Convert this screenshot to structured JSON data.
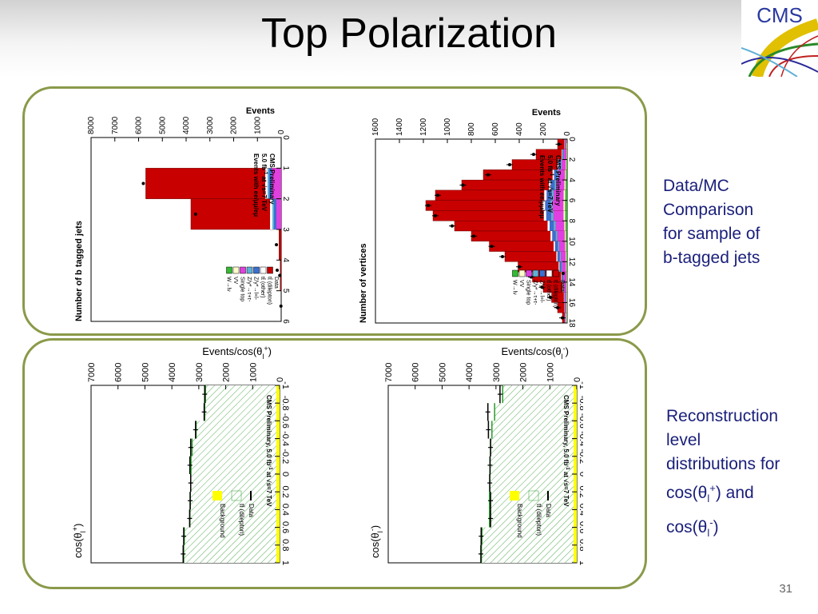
{
  "slide": {
    "title": "Top Polarization",
    "page_number": "31",
    "logo_text": "CMS",
    "side_text_1": [
      "Data/MC",
      "Comparison",
      "for sample of",
      "b-tagged jets"
    ],
    "side_text_2": [
      "Reconstruction",
      "level",
      "distributions for",
      "cos(θ",
      "l",
      "+",
      ") and",
      "cos(θ",
      "l",
      "-",
      ")"
    ]
  },
  "colors": {
    "panel_border": "#8a9a4a",
    "text_blue": "#1a1f7a",
    "ttbar_dilepton": "#c80000",
    "ttbar_other": "#ffffff",
    "z_ll": "#3b6fd0",
    "z_tautau": "#5fb0d8",
    "single_top": "#e040e0",
    "vv": "#ffffcc",
    "w_lnu": "#33bb33",
    "background_yellow": "#ffff00",
    "hatch_green": "#2a9a2a"
  },
  "chart_data": [
    {
      "type": "bar",
      "title": "",
      "ylabel": "Events",
      "xlabel": "Number of vertices",
      "xlim": [
        0,
        18
      ],
      "ylim": [
        0,
        1600
      ],
      "x_ticks": [
        "0",
        "2",
        "4",
        "6",
        "8",
        "10",
        "12",
        "14",
        "16",
        "18"
      ],
      "y_ticks": [
        "0",
        "200",
        "400",
        "600",
        "800",
        "1000",
        "1200",
        "1400",
        "1600"
      ],
      "annotation": [
        "CMS Preliminary",
        "5.0 fb",
        "-1",
        " at  √s=7 TeV",
        "Events with ee/μμ/eμ"
      ],
      "legend": [
        "Data",
        "tt̄ (dilepton)",
        "tt̄ (other)",
        "Z/γ*→l",
        "+",
        "l",
        "-",
        "Z/γ*→τ",
        "+",
        "τ",
        "-",
        "Single top",
        "VV",
        "W→lν"
      ],
      "categories": [
        0,
        1,
        2,
        3,
        4,
        5,
        6,
        7,
        8,
        9,
        10,
        11,
        12,
        13,
        14,
        15,
        16,
        17
      ],
      "series": [
        {
          "name": "tt̄ (dilepton)",
          "values": [
            80,
            260,
            460,
            700,
            880,
            1100,
            1180,
            1120,
            940,
            800,
            650,
            520,
            410,
            290,
            200,
            130,
            80,
            40
          ]
        },
        {
          "name": "Data",
          "values": [
            70,
            280,
            480,
            660,
            870,
            1080,
            1160,
            1100,
            960,
            780,
            630,
            540,
            400,
            300,
            210,
            140,
            80,
            40
          ]
        }
      ]
    },
    {
      "type": "bar",
      "title": "",
      "ylabel": "Events",
      "xlabel": "Number of b tagged jets",
      "xlim": [
        0,
        6
      ],
      "ylim": [
        0,
        8000
      ],
      "x_ticks": [
        "0",
        "1",
        "2",
        "3",
        "4",
        "5",
        "6"
      ],
      "y_ticks": [
        "0",
        "1000",
        "2000",
        "3000",
        "4000",
        "5000",
        "6000",
        "7000",
        "8000"
      ],
      "annotation": [
        "CMS Preliminary",
        "5.0 fb",
        "-1",
        " at  √s=7 TeV",
        "Events with ee/μμ/eμ"
      ],
      "legend": [
        "Data",
        "tt̄ (dilepton)",
        "tt̄ (other)",
        "Z/γ*→l",
        "+",
        "l",
        "-",
        "Z/γ*→τ",
        "+",
        "τ",
        "-",
        "Single top",
        "VV",
        "W→lν"
      ],
      "categories": [
        1,
        2,
        3,
        4,
        5
      ],
      "series": [
        {
          "name": "tt̄ (dilepton)",
          "values": [
            5700,
            3800,
            90,
            40,
            0
          ]
        },
        {
          "name": "Data",
          "values": [
            5800,
            3600,
            200,
            60,
            10
          ]
        }
      ]
    },
    {
      "type": "bar",
      "title": "",
      "ylabel": "Events/cos(θ",
      "ylabel_sub": "l",
      "ylabel_sup": "-",
      "ylabel_end": ")",
      "xlabel": "cos(θ",
      "xlabel_sub": "l",
      "xlabel_sup": "-",
      "xlabel_end": ")",
      "xlim": [
        -1,
        1
      ],
      "ylim": [
        0,
        7000
      ],
      "x_ticks": [
        "-1",
        "-0.8",
        "-0.6",
        "-0.4",
        "-0.2",
        "0",
        "0.2",
        "0.4",
        "0.6",
        "0.8",
        "1"
      ],
      "y_ticks": [
        "0",
        "1000",
        "2000",
        "3000",
        "4000",
        "5000",
        "6000",
        "7000"
      ],
      "annotation": [
        "CMS Preliminary, 5.0 fb",
        "-1",
        " at √s=7 TeV"
      ],
      "legend": [
        "Data",
        "tt̄ (dilepton)",
        "Background"
      ],
      "categories": [
        -0.9,
        -0.7,
        -0.5,
        -0.3,
        -0.1,
        0.1,
        0.3,
        0.5,
        0.7,
        0.9
      ],
      "series": [
        {
          "name": "Background",
          "values": [
            120,
            120,
            120,
            120,
            120,
            120,
            120,
            120,
            120,
            120
          ]
        },
        {
          "name": "tt̄ (dilepton)",
          "values": [
            2750,
            3050,
            3150,
            3200,
            3220,
            3230,
            3240,
            3240,
            3520,
            3540
          ]
        },
        {
          "name": "Data",
          "values": [
            2850,
            3300,
            3280,
            3200,
            3220,
            3230,
            3200,
            3200,
            3550,
            3560
          ]
        }
      ]
    },
    {
      "type": "bar",
      "title": "",
      "ylabel": "Events/cos(θ",
      "ylabel_sub": "l",
      "ylabel_sup": "+",
      "ylabel_end": ")",
      "xlabel": "cos(θ",
      "xlabel_sub": "l",
      "xlabel_sup": "+",
      "xlabel_end": ")",
      "xlim": [
        -1,
        1
      ],
      "ylim": [
        0,
        7000
      ],
      "x_ticks": [
        "-1",
        "-0.8",
        "-0.6",
        "-0.4",
        "-0.2",
        "0",
        "0.2",
        "0.4",
        "0.6",
        "0.8",
        "1"
      ],
      "y_ticks": [
        "0",
        "1000",
        "2000",
        "3000",
        "4000",
        "5000",
        "6000",
        "7000"
      ],
      "annotation": [
        "CMS Preliminary, 5.0 fb",
        "-1",
        " at √s=7 TeV"
      ],
      "legend": [
        "Data",
        "tt̄ (dilepton)",
        "Background"
      ],
      "categories": [
        -0.9,
        -0.7,
        -0.5,
        -0.3,
        -0.1,
        0.1,
        0.3,
        0.5,
        0.7,
        0.9
      ],
      "series": [
        {
          "name": "Background",
          "values": [
            120,
            120,
            120,
            120,
            120,
            120,
            120,
            120,
            120,
            120
          ]
        },
        {
          "name": "tt̄ (dilepton)",
          "values": [
            2750,
            2780,
            3100,
            3250,
            3290,
            3300,
            3320,
            3330,
            3540,
            3560
          ]
        },
        {
          "name": "Data",
          "values": [
            2780,
            2800,
            3120,
            3300,
            3330,
            3300,
            3320,
            3340,
            3560,
            3580
          ]
        }
      ]
    }
  ]
}
